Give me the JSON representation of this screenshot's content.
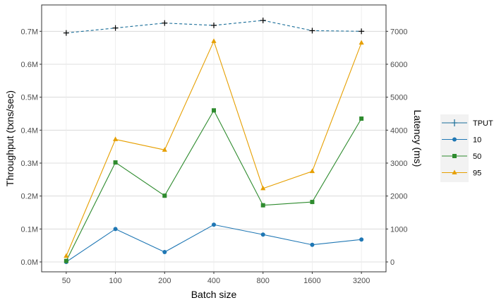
{
  "chart_data": {
    "type": "line",
    "categories": [
      "50",
      "100",
      "200",
      "400",
      "800",
      "1600",
      "3200"
    ],
    "xlabel": "Batch size",
    "ylabel_left": "Throughput (txns/sec)",
    "ylabel_right": "Latency (ms)",
    "ylim_left": [
      -0.03,
      0.78
    ],
    "ylim_right": [
      -300,
      7800
    ],
    "left_ticks": [
      0,
      0.1,
      0.2,
      0.3,
      0.4,
      0.5,
      0.6,
      0.7
    ],
    "left_tick_labels": [
      "0.0M",
      "0.1M",
      "0.2M",
      "0.3M",
      "0.4M",
      "0.5M",
      "0.6M",
      "0.7M"
    ],
    "right_ticks": [
      0,
      1000,
      2000,
      3000,
      4000,
      5000,
      6000,
      7000
    ],
    "right_tick_labels": [
      "0",
      "1000",
      "2000",
      "3000",
      "4000",
      "5000",
      "6000",
      "7000"
    ],
    "grid": true,
    "legend_position": "right",
    "series": [
      {
        "name": "TPUT",
        "axis": "left",
        "units": "M txns/sec",
        "values": [
          0.695,
          0.71,
          0.725,
          0.718,
          0.733,
          0.702,
          0.7
        ],
        "color": "#1a6e99",
        "marker": "plus",
        "dash": true
      },
      {
        "name": "10",
        "axis": "right",
        "units": "ms",
        "values": [
          0,
          1000,
          300,
          1130,
          830,
          520,
          680
        ],
        "color": "#1f77b4",
        "marker": "circle",
        "dash": false
      },
      {
        "name": "50",
        "axis": "right",
        "units": "ms",
        "values": [
          30,
          3020,
          2010,
          4600,
          1720,
          1820,
          4350
        ],
        "color": "#2e8b2e",
        "marker": "square",
        "dash": false
      },
      {
        "name": "95",
        "axis": "right",
        "units": "ms",
        "values": [
          180,
          3720,
          3400,
          6700,
          2230,
          2750,
          6650
        ],
        "color": "#e69f00",
        "marker": "triangle",
        "dash": false
      }
    ]
  }
}
